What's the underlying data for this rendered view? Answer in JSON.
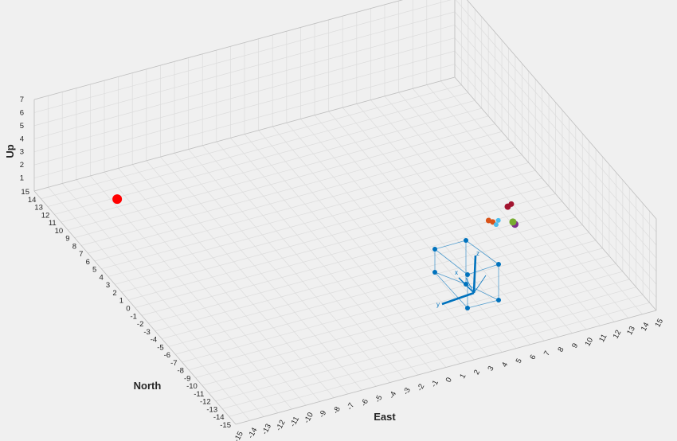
{
  "chart_data": {
    "type": "scatter",
    "subtype": "3d-scatter",
    "xlabel": "East",
    "ylabel": "North",
    "zlabel": "Up",
    "xlim": [
      -15,
      15
    ],
    "ylim": [
      -15,
      15
    ],
    "zlim": [
      0,
      7
    ],
    "xticks": [
      -15,
      -14,
      -13,
      -12,
      -11,
      -10,
      -9,
      -8,
      -7,
      -6,
      -5,
      -4,
      -3,
      -2,
      -1,
      0,
      1,
      2,
      3,
      4,
      5,
      6,
      7,
      8,
      9,
      10,
      11,
      12,
      13,
      14,
      15
    ],
    "yticks": [
      -15,
      -14,
      -13,
      -12,
      -11,
      -10,
      -9,
      -8,
      -7,
      -6,
      -5,
      -4,
      -3,
      -2,
      -1,
      0,
      1,
      2,
      3,
      4,
      5,
      6,
      7,
      8,
      9,
      10,
      11,
      12,
      13,
      14,
      15
    ],
    "zticks": [
      1,
      2,
      3,
      4,
      5,
      6,
      7
    ],
    "grid": true,
    "colors": {
      "background": "#f0f0f0",
      "target": "#ff0000",
      "frame": "#0072bd",
      "orange": "#d95319",
      "cyan": "#4dbeee",
      "purple": "#7e2f8e",
      "green": "#77ac30",
      "crimson": "#a2142f"
    },
    "series": [
      {
        "color": "#ff0000",
        "points": [
          {
            "x": -11,
            "y": 11,
            "z": 0.6,
            "size": 12
          }
        ]
      },
      {
        "color": "#d95319",
        "points": [
          {
            "x": 9.6,
            "y": -1.3,
            "z": 0.3,
            "size": 7
          },
          {
            "x": 9.8,
            "y": -1.5,
            "z": 0.25,
            "size": 7
          }
        ]
      },
      {
        "color": "#4dbeee",
        "points": [
          {
            "x": 9.9,
            "y": -1.8,
            "z": 0.2,
            "size": 6
          },
          {
            "x": 10.2,
            "y": -1.5,
            "z": 0.25,
            "size": 6
          }
        ]
      },
      {
        "color": "#7e2f8e",
        "points": [
          {
            "x": 11,
            "y": -2.3,
            "z": 0.2,
            "size": 9
          }
        ]
      },
      {
        "color": "#77ac30",
        "points": [
          {
            "x": 11,
            "y": -2,
            "z": 0.2,
            "size": 9
          }
        ]
      },
      {
        "color": "#a2142f",
        "points": [
          {
            "x": 11.4,
            "y": -0.4,
            "z": 0.3,
            "size": 8
          },
          {
            "x": 11.7,
            "y": -0.3,
            "z": 0.35,
            "size": 7
          }
        ]
      }
    ],
    "body_frame": {
      "labels": {
        "x": "x",
        "y": "y",
        "z": "z"
      }
    }
  }
}
